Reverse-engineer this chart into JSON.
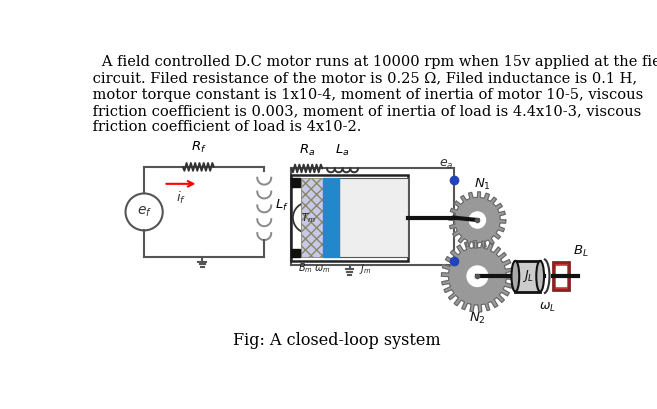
{
  "title_text": "   A field controlled D.C motor runs at 10000 rpm when 15v applied at the field\n circuit. Filed resistance of the motor is 0.25 Ω, Filed inductance is 0.1 H,\n motor torque constant is 1x10-4, moment of inertia of motor 10-5, viscous\n friction coefficient is 0.003, moment of inertia of load is 4.4x10-3, viscous\n friction coefficient of load is 4x10-2.",
  "fig_caption": "Fig: A closed-loop system",
  "bg_color": "#ffffff",
  "text_color": "#000000",
  "title_fontsize": 10.5,
  "caption_fontsize": 11.5
}
